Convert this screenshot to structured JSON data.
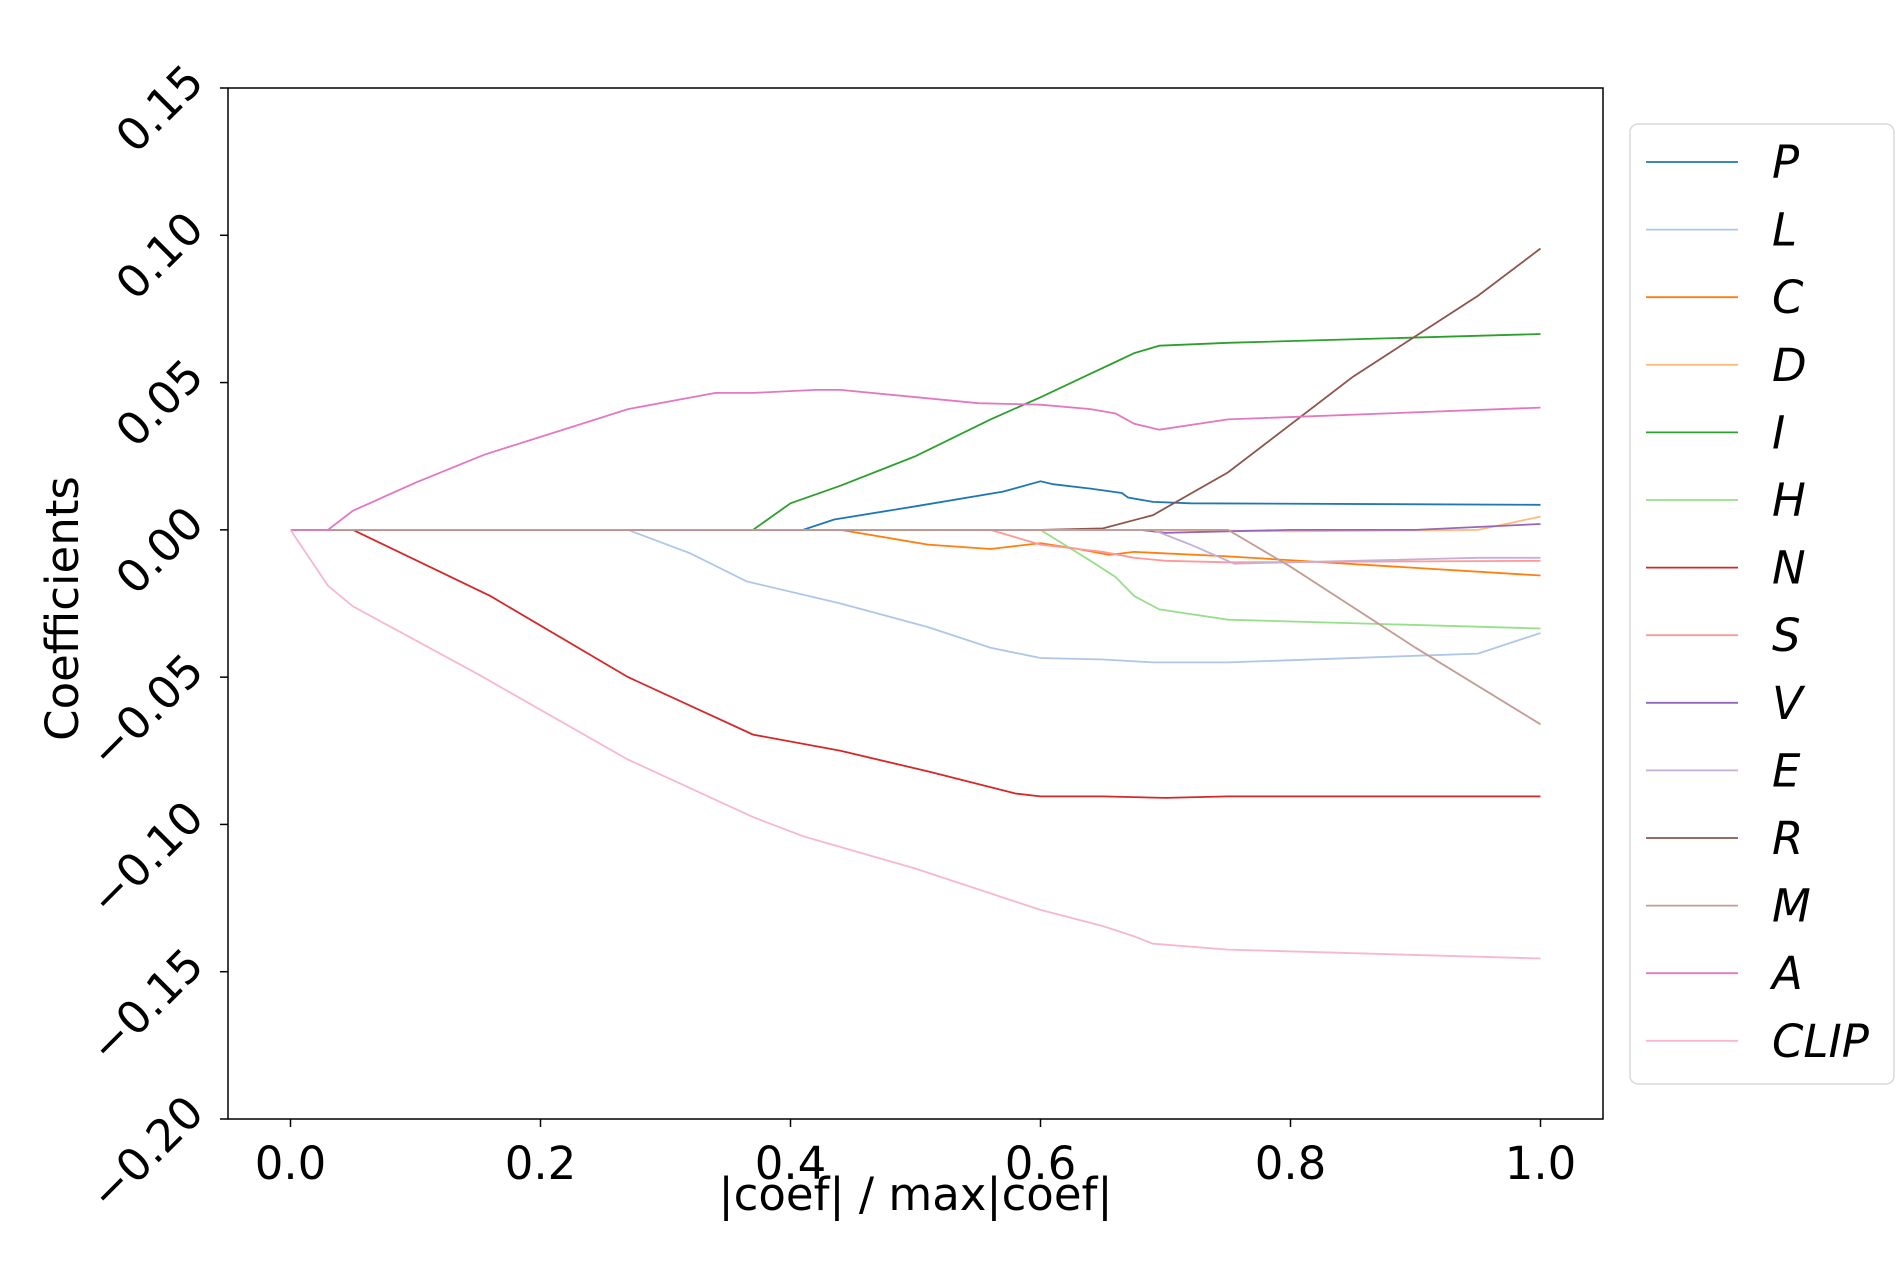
{
  "chart_data": {
    "type": "line",
    "title": "",
    "xlabel": "|coef| / max|coef|",
    "ylabel": "Coefficients",
    "xlim": [
      -0.05,
      1.05
    ],
    "ylim": [
      -0.2,
      0.15
    ],
    "xticks": [
      0.0,
      0.2,
      0.4,
      0.6,
      0.8,
      1.0
    ],
    "xtick_labels": [
      "0.0",
      "0.2",
      "0.4",
      "0.6",
      "0.8",
      "1.0"
    ],
    "yticks": [
      -0.2,
      -0.15,
      -0.1,
      -0.05,
      0.0,
      0.05,
      0.1,
      0.15
    ],
    "ytick_labels": [
      "−0.20",
      "−0.15",
      "−0.10",
      "−0.05",
      "0.00",
      "0.05",
      "0.10",
      "0.15"
    ],
    "grid": false,
    "legend_position": "outside right",
    "series": [
      {
        "name": "P",
        "color": "#1f77b4",
        "points": [
          [
            0,
            0
          ],
          [
            0.41,
            0
          ],
          [
            0.435,
            0.0035
          ],
          [
            0.5,
            0.008
          ],
          [
            0.57,
            0.013
          ],
          [
            0.6,
            0.0165
          ],
          [
            0.61,
            0.0155
          ],
          [
            0.64,
            0.014
          ],
          [
            0.665,
            0.0125
          ],
          [
            0.67,
            0.011
          ],
          [
            0.69,
            0.0095
          ],
          [
            0.72,
            0.009
          ],
          [
            1.0,
            0.0085
          ]
        ]
      },
      {
        "name": "L",
        "color": "#aec7e8",
        "points": [
          [
            0,
            0
          ],
          [
            0.27,
            0
          ],
          [
            0.32,
            -0.008
          ],
          [
            0.365,
            -0.0175
          ],
          [
            0.44,
            -0.025
          ],
          [
            0.51,
            -0.033
          ],
          [
            0.56,
            -0.04
          ],
          [
            0.6,
            -0.0435
          ],
          [
            0.65,
            -0.044
          ],
          [
            0.69,
            -0.045
          ],
          [
            0.75,
            -0.045
          ],
          [
            0.95,
            -0.042
          ],
          [
            1.0,
            -0.035
          ]
        ]
      },
      {
        "name": "C",
        "color": "#ff7f0e",
        "points": [
          [
            0,
            0
          ],
          [
            0.44,
            0
          ],
          [
            0.51,
            -0.005
          ],
          [
            0.56,
            -0.0065
          ],
          [
            0.6,
            -0.0045
          ],
          [
            0.63,
            -0.0065
          ],
          [
            0.655,
            -0.0085
          ],
          [
            0.675,
            -0.0075
          ],
          [
            0.75,
            -0.009
          ],
          [
            1.0,
            -0.0155
          ]
        ]
      },
      {
        "name": "D",
        "color": "#ffbb78",
        "points": [
          [
            0,
            0
          ],
          [
            0.7,
            0
          ],
          [
            0.8,
            -0.0005
          ],
          [
            0.95,
            0
          ],
          [
            1.0,
            0.0045
          ]
        ]
      },
      {
        "name": "I",
        "color": "#2ca02c",
        "points": [
          [
            0,
            0
          ],
          [
            0.37,
            0
          ],
          [
            0.4,
            0.009
          ],
          [
            0.44,
            0.015
          ],
          [
            0.5,
            0.025
          ],
          [
            0.56,
            0.0375
          ],
          [
            0.6,
            0.045
          ],
          [
            0.64,
            0.053
          ],
          [
            0.66,
            0.057
          ],
          [
            0.675,
            0.06
          ],
          [
            0.695,
            0.0625
          ],
          [
            0.75,
            0.0635
          ],
          [
            1.0,
            0.0665
          ]
        ]
      },
      {
        "name": "H",
        "color": "#98df8a",
        "points": [
          [
            0,
            0
          ],
          [
            0.6,
            0
          ],
          [
            0.64,
            -0.0105
          ],
          [
            0.66,
            -0.016
          ],
          [
            0.675,
            -0.0225
          ],
          [
            0.695,
            -0.027
          ],
          [
            0.75,
            -0.0305
          ],
          [
            1.0,
            -0.0335
          ]
        ]
      },
      {
        "name": "N",
        "color": "#d62728",
        "points": [
          [
            0,
            0
          ],
          [
            0.05,
            0
          ],
          [
            0.16,
            -0.0225
          ],
          [
            0.27,
            -0.05
          ],
          [
            0.37,
            -0.0695
          ],
          [
            0.44,
            -0.075
          ],
          [
            0.51,
            -0.082
          ],
          [
            0.58,
            -0.0895
          ],
          [
            0.6,
            -0.0905
          ],
          [
            0.65,
            -0.0905
          ],
          [
            0.7,
            -0.091
          ],
          [
            0.75,
            -0.0905
          ],
          [
            1.0,
            -0.0905
          ]
        ]
      },
      {
        "name": "S",
        "color": "#ff9896",
        "points": [
          [
            0,
            0
          ],
          [
            0.56,
            0
          ],
          [
            0.6,
            -0.005
          ],
          [
            0.65,
            -0.0075
          ],
          [
            0.675,
            -0.0095
          ],
          [
            0.7,
            -0.0105
          ],
          [
            0.75,
            -0.011
          ],
          [
            1.0,
            -0.0105
          ]
        ]
      },
      {
        "name": "V",
        "color": "#9467bd",
        "points": [
          [
            0,
            0
          ],
          [
            0.68,
            0
          ],
          [
            0.7,
            -0.001
          ],
          [
            0.75,
            -0.0005
          ],
          [
            0.8,
            0
          ],
          [
            0.9,
            0
          ],
          [
            1.0,
            0.002
          ]
        ]
      },
      {
        "name": "E",
        "color": "#c5b0d5",
        "points": [
          [
            0,
            0
          ],
          [
            0.69,
            0
          ],
          [
            0.72,
            -0.005
          ],
          [
            0.755,
            -0.0115
          ],
          [
            0.8,
            -0.011
          ],
          [
            0.95,
            -0.0095
          ],
          [
            1.0,
            -0.0095
          ]
        ]
      },
      {
        "name": "R",
        "color": "#8c564b",
        "points": [
          [
            0,
            0
          ],
          [
            0.6,
            0
          ],
          [
            0.65,
            0.0005
          ],
          [
            0.69,
            0.005
          ],
          [
            0.75,
            0.0195
          ],
          [
            0.85,
            0.052
          ],
          [
            0.95,
            0.0795
          ],
          [
            1.0,
            0.0955
          ]
        ]
      },
      {
        "name": "M",
        "color": "#c49c94",
        "points": [
          [
            0,
            0
          ],
          [
            0.75,
            0
          ],
          [
            0.8,
            -0.0125
          ],
          [
            0.9,
            -0.04
          ],
          [
            1.0,
            -0.066
          ]
        ]
      },
      {
        "name": "A",
        "color": "#e377c2",
        "points": [
          [
            0,
            0
          ],
          [
            0.03,
            0
          ],
          [
            0.05,
            0.0065
          ],
          [
            0.1,
            0.016
          ],
          [
            0.155,
            0.0255
          ],
          [
            0.27,
            0.041
          ],
          [
            0.34,
            0.0465
          ],
          [
            0.37,
            0.0465
          ],
          [
            0.42,
            0.0475
          ],
          [
            0.44,
            0.0475
          ],
          [
            0.55,
            0.043
          ],
          [
            0.6,
            0.0425
          ],
          [
            0.64,
            0.041
          ],
          [
            0.66,
            0.0395
          ],
          [
            0.675,
            0.036
          ],
          [
            0.695,
            0.034
          ],
          [
            0.75,
            0.0375
          ],
          [
            1.0,
            0.0415
          ]
        ]
      },
      {
        "name": "CLIP",
        "color": "#f7b6d2",
        "points": [
          [
            0,
            0
          ],
          [
            0.03,
            -0.019
          ],
          [
            0.05,
            -0.026
          ],
          [
            0.15,
            -0.049
          ],
          [
            0.27,
            -0.078
          ],
          [
            0.37,
            -0.0975
          ],
          [
            0.41,
            -0.104
          ],
          [
            0.5,
            -0.115
          ],
          [
            0.6,
            -0.129
          ],
          [
            0.65,
            -0.1345
          ],
          [
            0.675,
            -0.138
          ],
          [
            0.69,
            -0.1405
          ],
          [
            0.75,
            -0.1425
          ],
          [
            1.0,
            -0.1455
          ]
        ]
      }
    ]
  }
}
